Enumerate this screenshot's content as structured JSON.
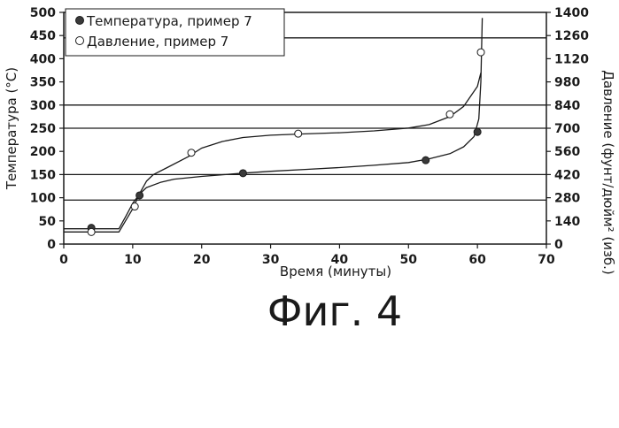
{
  "chart_data": {
    "type": "line",
    "caption": "Фиг. 4",
    "xlabel": "Время (минуты)",
    "ylabel_left": "Температура (°C)",
    "ylabel_right": "Давление (фунт/дюйм² (изб.)",
    "xlim": [
      0,
      70
    ],
    "ylim_left": [
      0,
      500
    ],
    "ylim_right": [
      0,
      1400
    ],
    "x_ticks": [
      "0",
      "10",
      "20",
      "30",
      "40",
      "50",
      "60",
      "70"
    ],
    "y_left_ticks": [
      "0",
      "50",
      "100",
      "150",
      "200",
      "250",
      "300",
      "350",
      "400",
      "450",
      "500"
    ],
    "y_right_ticks": [
      "0",
      "140",
      "280",
      "420",
      "560",
      "700",
      "840",
      "980",
      "1120",
      "1260",
      "1400"
    ],
    "hgrid_left_values": [
      95,
      150,
      250,
      300,
      445
    ],
    "legend": {
      "position": "top-left",
      "entries": [
        "Температура, пример 7",
        "Давление, пример 7"
      ]
    },
    "series": [
      {
        "name": "Температура, пример 7",
        "axis": "left",
        "marker": "filled-circle",
        "points": [
          [
            4,
            35
          ],
          [
            11,
            105
          ],
          [
            26,
            153
          ],
          [
            52.5,
            181
          ],
          [
            60,
            242
          ]
        ],
        "curve": [
          [
            0,
            33
          ],
          [
            4,
            33
          ],
          [
            8,
            33
          ],
          [
            9,
            60
          ],
          [
            10,
            88
          ],
          [
            11,
            108
          ],
          [
            12,
            122
          ],
          [
            14,
            133
          ],
          [
            16,
            140
          ],
          [
            20,
            146
          ],
          [
            26,
            153
          ],
          [
            30,
            157
          ],
          [
            35,
            161
          ],
          [
            40,
            165
          ],
          [
            45,
            170
          ],
          [
            50,
            176
          ],
          [
            53,
            184
          ],
          [
            56,
            195
          ],
          [
            58,
            210
          ],
          [
            59.5,
            232
          ],
          [
            60.2,
            270
          ],
          [
            60.5,
            350
          ],
          [
            60.7,
            488
          ]
        ]
      },
      {
        "name": "Давление, пример 7",
        "axis": "right",
        "marker": "open-circle",
        "points": [
          [
            4,
            73
          ],
          [
            10.3,
            227
          ],
          [
            18.5,
            552
          ],
          [
            34,
            667
          ],
          [
            56,
            784
          ],
          [
            60.5,
            1159
          ]
        ],
        "curve": [
          [
            0,
            73
          ],
          [
            4,
            73
          ],
          [
            8,
            73
          ],
          [
            9,
            143
          ],
          [
            10,
            213
          ],
          [
            11,
            305
          ],
          [
            12,
            380
          ],
          [
            13,
            420
          ],
          [
            15,
            462
          ],
          [
            18,
            527
          ],
          [
            20,
            580
          ],
          [
            23,
            620
          ],
          [
            26,
            644
          ],
          [
            30,
            658
          ],
          [
            35,
            666
          ],
          [
            40,
            673
          ],
          [
            45,
            684
          ],
          [
            50,
            701
          ],
          [
            53,
            722
          ],
          [
            56,
            770
          ],
          [
            58,
            832
          ],
          [
            60,
            952
          ],
          [
            60.5,
            1035
          ]
        ]
      }
    ]
  }
}
